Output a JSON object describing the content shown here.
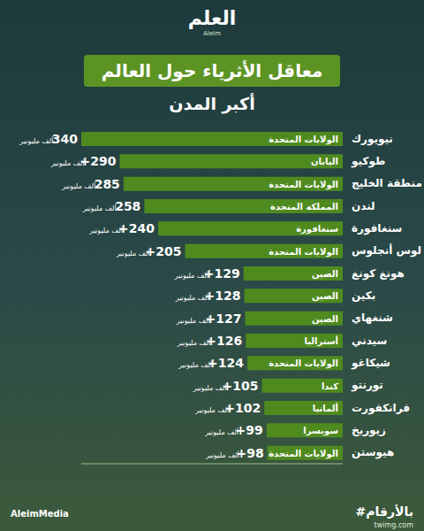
{
  "header": {
    "logo": "العلم",
    "logo_latin": "AleIm"
  },
  "footer": {
    "hashtag": "#بالأرقام",
    "handle": "AleimMedia",
    "watermark": "twimg.com"
  },
  "chart_data": {
    "type": "bar",
    "orientation": "horizontal",
    "title": "معاقل الأثرياء حول العالم",
    "subtitle": "أكبر المدن",
    "categories": [
      "نيويورك",
      "طوكيو",
      "منطقة الخليج",
      "لندن",
      "سنغافورة",
      "لوس أنجلوس",
      "هونغ كونغ",
      "بكين",
      "شنغهاي",
      "سيدني",
      "شيكاغو",
      "تورنتو",
      "فرانكفورت",
      "زيوريخ",
      "هيوستن"
    ],
    "countries": [
      "الولايات المتحدة",
      "اليابان",
      "الولايات المتحدة",
      "المملكة المتحدة",
      "سنغافورة",
      "الولايات المتحدة",
      "الصين",
      "الصين",
      "الصين",
      "أستراليا",
      "الولايات المتحدة",
      "كندا",
      "ألمانيا",
      "سويسرا",
      "الولايات المتحدة"
    ],
    "values": [
      340,
      290,
      285,
      258,
      240,
      205,
      129,
      128,
      127,
      126,
      124,
      105,
      102,
      99,
      98
    ],
    "value_labels": [
      "340",
      "+290",
      "285",
      "258",
      "+240",
      "+205",
      "+129",
      "+128",
      "+127",
      "+126",
      "+124",
      "+105",
      "+102",
      "+99",
      "+98"
    ],
    "value_unit": "ألف مليونير",
    "color": "#4f8a1f",
    "xlim": [
      0,
      340
    ],
    "tick_labels": false,
    "data_labels": true,
    "grid": false
  }
}
